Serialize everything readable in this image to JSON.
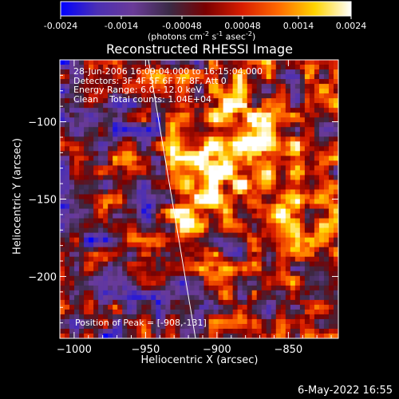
{
  "colorbar": {
    "ticks": [
      "-0.0024",
      "-0.0014",
      "-0.00048",
      "0.00048",
      "0.0014",
      "0.0024"
    ],
    "unit_parts": [
      "(photons cm",
      "-2",
      " s",
      "-1",
      " asec",
      "-2",
      ")"
    ],
    "colors": [
      "#0000ff",
      "#4b2fb4",
      "#6a3b98",
      "#3a2a45",
      "#7a0000",
      "#d81d00",
      "#ff6a00",
      "#ffd400",
      "#ffffff"
    ]
  },
  "chart_data": {
    "type": "heatmap",
    "title": "Reconstructed RHESSI Image",
    "xlabel": "Heliocentric X (arcsec)",
    "ylabel": "Heliocentric Y (arcsec)",
    "xlim": [
      -1010,
      -815
    ],
    "ylim": [
      -240,
      -60
    ],
    "x_ticks": [
      -1000,
      -950,
      -900,
      -850
    ],
    "x_tick_labels": [
      "−1000",
      "−950",
      "−900",
      "−850"
    ],
    "y_ticks": [
      -200,
      -150,
      -100
    ],
    "y_tick_labels": [
      "−200",
      "−150",
      "−100"
    ],
    "value_range": [
      -0.0024,
      0.0024
    ],
    "peak": [
      -908,
      -131
    ],
    "bright_regions": [
      {
        "x": -908,
        "y": -131,
        "amplitude": 0.0024,
        "sigma": 16
      },
      {
        "x": -920,
        "y": -165,
        "amplitude": 0.0018,
        "sigma": 14
      },
      {
        "x": -870,
        "y": -120,
        "amplitude": 0.0014,
        "sigma": 20
      },
      {
        "x": -845,
        "y": -165,
        "amplitude": 0.0011,
        "sigma": 18
      },
      {
        "x": -885,
        "y": -85,
        "amplitude": 0.0009,
        "sigma": 15
      }
    ],
    "limb_line": [
      [
        -948,
        -60
      ],
      [
        -915,
        -240
      ]
    ]
  },
  "info_lines": [
    "28-Jun-2006 16:09:04.000 to 16:15:04.000",
    "Detectors: 3F 4F 5F 6F 7F 8F, Att 0",
    "Energy Range: 6.0 - 12.0 keV",
    "Clean    Total counts: 1.04E+04"
  ],
  "peak_text": "Position of Peak = [-908,-131]",
  "date_stamp": "6-May-2022 16:55"
}
